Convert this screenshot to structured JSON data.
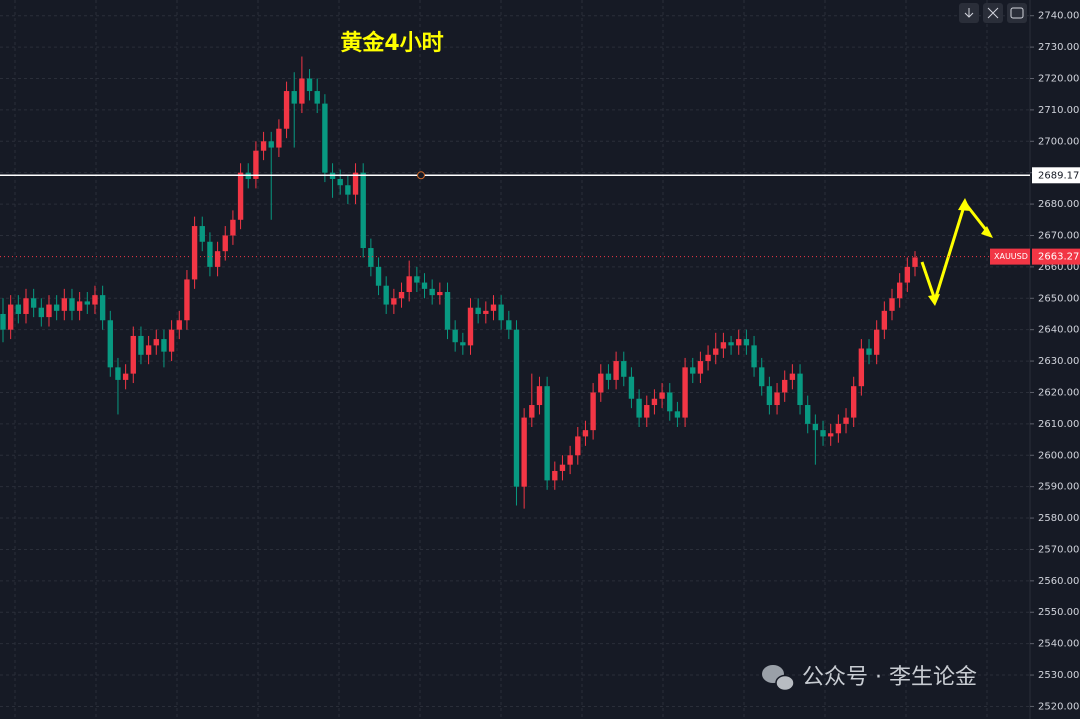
{
  "chart_data": {
    "type": "candlestick",
    "title": "黄金4小时",
    "symbol": "XAUUSD",
    "last_price": 2663.27,
    "price_line": 2689.17,
    "watermark": "公众号 · 李生论金",
    "up_color": "#f23645",
    "down_color": "#089981",
    "grid": true,
    "ylim": [
      2516,
      2745
    ],
    "yticks": [
      {
        "value": 2520,
        "label": "2520.00"
      },
      {
        "value": 2530,
        "label": "2530.00"
      },
      {
        "value": 2540,
        "label": "2540.00"
      },
      {
        "value": 2550,
        "label": "2550.00"
      },
      {
        "value": 2560,
        "label": "2560.00"
      },
      {
        "value": 2570,
        "label": "2570.00"
      },
      {
        "value": 2580,
        "label": "2580.00"
      },
      {
        "value": 2590,
        "label": "2590.00"
      },
      {
        "value": 2600,
        "label": "2600.00"
      },
      {
        "value": 2610,
        "label": "2610.00"
      },
      {
        "value": 2620,
        "label": "2620.00"
      },
      {
        "value": 2630,
        "label": "2630.00"
      },
      {
        "value": 2640,
        "label": "2640.00"
      },
      {
        "value": 2650,
        "label": "2650.00"
      },
      {
        "value": 2660,
        "label": "2660.00"
      },
      {
        "value": 2670,
        "label": "2670.00"
      },
      {
        "value": 2680,
        "label": "2680.00"
      },
      {
        "value": 2690,
        "label": "2690.00"
      },
      {
        "value": 2700,
        "label": "2700.00"
      },
      {
        "value": 2710,
        "label": "2710.00"
      },
      {
        "value": 2720,
        "label": "2720.00"
      },
      {
        "value": 2730,
        "label": "2730.00"
      },
      {
        "value": 2740,
        "label": "2740.00"
      }
    ],
    "open": [
      2645,
      2640,
      2648,
      2645,
      2650,
      2647,
      2644,
      2648,
      2646,
      2650,
      2646,
      2649,
      2648,
      2651,
      2643,
      2628,
      2624,
      2626,
      2638,
      2632,
      2635,
      2637,
      2633,
      2640,
      2643,
      2656,
      2673,
      2668,
      2660,
      2665,
      2670,
      2675,
      2690,
      2688,
      2697,
      2700,
      2698,
      2704,
      2716,
      2712,
      2720,
      2716,
      2712,
      2690,
      2688,
      2686,
      2683,
      2690,
      2666,
      2660,
      2654,
      2648,
      2650,
      2652,
      2657,
      2655,
      2653,
      2651,
      2652,
      2640,
      2636,
      2635,
      2647,
      2645,
      2646,
      2648,
      2643,
      2640,
      2590,
      2612,
      2616,
      2622,
      2592,
      2595,
      2597,
      2600,
      2606,
      2608,
      2620,
      2626,
      2624,
      2630,
      2625,
      2618,
      2612,
      2616,
      2618,
      2620,
      2614,
      2612,
      2628,
      2626,
      2630,
      2632,
      2634,
      2636,
      2635,
      2637,
      2635,
      2628,
      2622,
      2616,
      2620,
      2624,
      2626,
      2616,
      2610,
      2608,
      2606,
      2607,
      2610,
      2612,
      2622,
      2634,
      2632,
      2640,
      2646,
      2650,
      2655,
      2660
    ],
    "high": [
      2650,
      2651,
      2651,
      2653,
      2653,
      2650,
      2651,
      2651,
      2653,
      2653,
      2652,
      2652,
      2654,
      2654,
      2646,
      2631,
      2629,
      2641,
      2641,
      2638,
      2640,
      2640,
      2643,
      2646,
      2659,
      2676,
      2676,
      2671,
      2668,
      2673,
      2678,
      2693,
      2693,
      2700,
      2703,
      2703,
      2707,
      2719,
      2722,
      2727,
      2723,
      2720,
      2715,
      2693,
      2691,
      2689,
      2693,
      2693,
      2669,
      2663,
      2657,
      2653,
      2655,
      2662,
      2660,
      2658,
      2656,
      2655,
      2655,
      2643,
      2639,
      2650,
      2650,
      2649,
      2651,
      2651,
      2646,
      2643,
      2615,
      2626,
      2625,
      2625,
      2598,
      2600,
      2603,
      2609,
      2611,
      2623,
      2629,
      2629,
      2633,
      2633,
      2628,
      2621,
      2619,
      2621,
      2623,
      2623,
      2617,
      2631,
      2631,
      2633,
      2635,
      2639,
      2639,
      2638,
      2640,
      2640,
      2638,
      2631,
      2625,
      2623,
      2627,
      2629,
      2629,
      2619,
      2613,
      2611,
      2610,
      2613,
      2615,
      2625,
      2637,
      2637,
      2643,
      2649,
      2653,
      2658,
      2663,
      2665
    ],
    "low": [
      2636,
      2637,
      2642,
      2642,
      2644,
      2641,
      2641,
      2643,
      2643,
      2643,
      2643,
      2645,
      2645,
      2640,
      2625,
      2613,
      2621,
      2623,
      2629,
      2629,
      2632,
      2628,
      2630,
      2637,
      2640,
      2653,
      2665,
      2657,
      2657,
      2662,
      2667,
      2672,
      2685,
      2685,
      2694,
      2675,
      2695,
      2701,
      2698,
      2709,
      2713,
      2709,
      2687,
      2682,
      2683,
      2680,
      2680,
      2663,
      2657,
      2651,
      2645,
      2645,
      2647,
      2649,
      2652,
      2650,
      2648,
      2648,
      2637,
      2633,
      2632,
      2632,
      2642,
      2642,
      2643,
      2640,
      2637,
      2584,
      2583,
      2609,
      2613,
      2589,
      2589,
      2592,
      2594,
      2597,
      2603,
      2605,
      2617,
      2621,
      2621,
      2622,
      2615,
      2609,
      2609,
      2613,
      2615,
      2611,
      2609,
      2609,
      2623,
      2623,
      2627,
      2629,
      2631,
      2632,
      2632,
      2632,
      2625,
      2619,
      2613,
      2613,
      2617,
      2621,
      2613,
      2607,
      2597,
      2603,
      2603,
      2604,
      2607,
      2609,
      2619,
      2629,
      2629,
      2637,
      2643,
      2647,
      2652,
      2657
    ],
    "close": [
      2640,
      2648,
      2645,
      2650,
      2647,
      2644,
      2648,
      2646,
      2650,
      2646,
      2649,
      2648,
      2651,
      2643,
      2628,
      2624,
      2626,
      2638,
      2632,
      2635,
      2637,
      2633,
      2640,
      2643,
      2656,
      2673,
      2668,
      2660,
      2665,
      2670,
      2675,
      2690,
      2688,
      2697,
      2700,
      2698,
      2704,
      2716,
      2712,
      2720,
      2716,
      2712,
      2690,
      2688,
      2686,
      2683,
      2690,
      2666,
      2660,
      2654,
      2648,
      2650,
      2652,
      2657,
      2655,
      2653,
      2651,
      2652,
      2640,
      2636,
      2635,
      2647,
      2645,
      2646,
      2648,
      2643,
      2640,
      2590,
      2612,
      2616,
      2622,
      2592,
      2595,
      2597,
      2600,
      2606,
      2608,
      2620,
      2626,
      2624,
      2630,
      2625,
      2618,
      2612,
      2616,
      2618,
      2620,
      2614,
      2612,
      2628,
      2626,
      2630,
      2632,
      2634,
      2636,
      2635,
      2637,
      2635,
      2628,
      2622,
      2616,
      2620,
      2624,
      2626,
      2616,
      2610,
      2608,
      2606,
      2607,
      2610,
      2612,
      2622,
      2634,
      2632,
      2640,
      2646,
      2650,
      2655,
      2660,
      2663
    ]
  }
}
